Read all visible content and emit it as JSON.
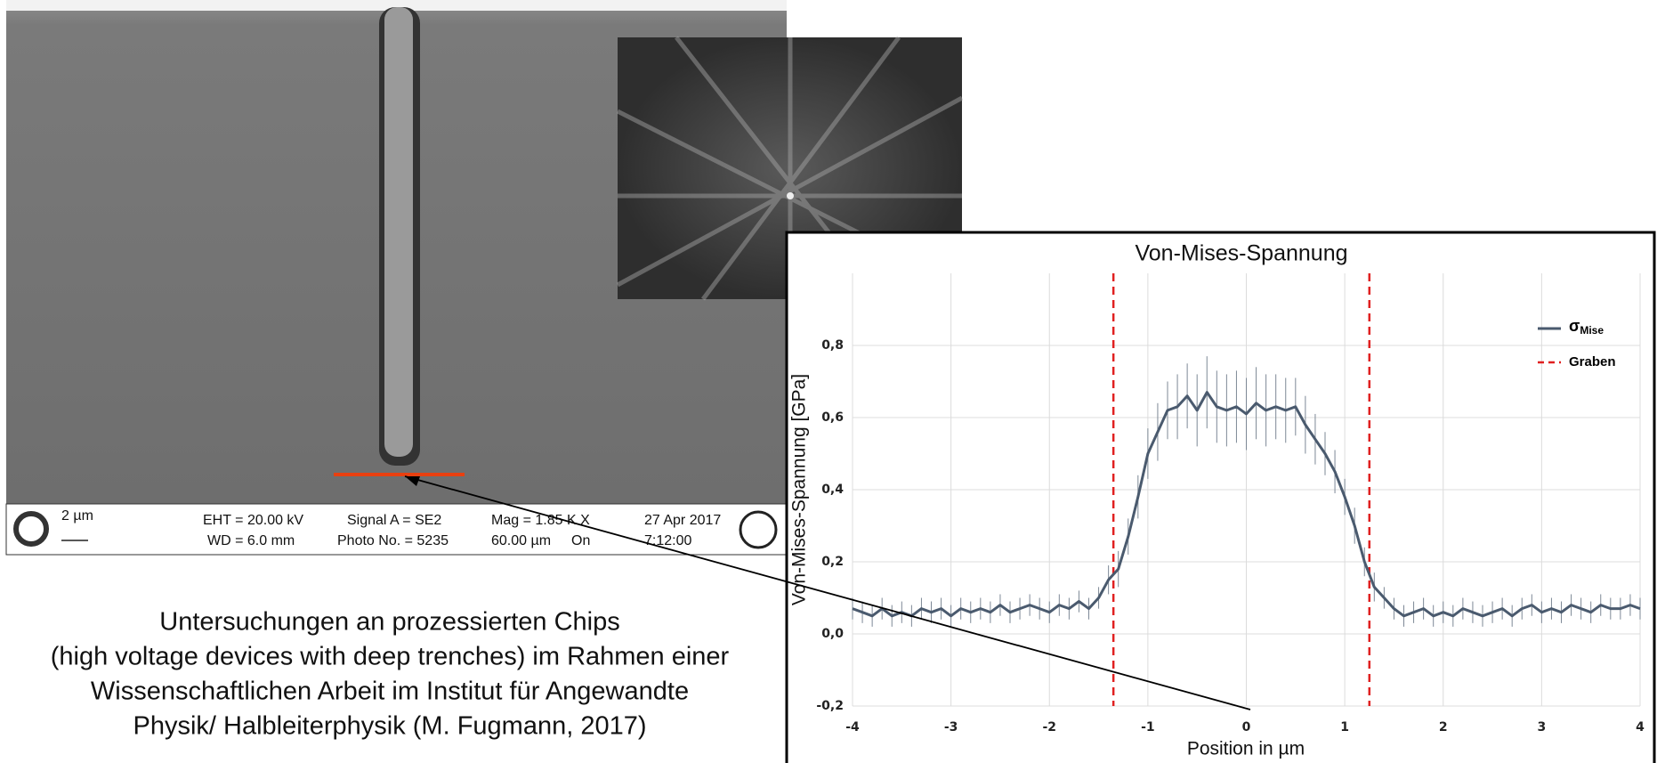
{
  "sem_info": {
    "scale": "2 µm",
    "eht": "EHT = 20.00 kV",
    "wd": "WD =  6.0 mm",
    "signal": "Signal A = SE2",
    "photo": "Photo No. = 5235",
    "mag": "Mag =   1.85 K X",
    "width": "60.00 µm",
    "on": "On",
    "date": "27 Apr 2017",
    "time": "7:12:00"
  },
  "caption": [
    "Untersuchungen an prozessierten Chips",
    "(high voltage devices with deep trenches) im Rahmen einer",
    "Wissenschaftlichen Arbeit im Institut für Angewandte",
    "Physik/ Halbleiterphysik (M. Fugmann, 2017)"
  ],
  "chart_data": {
    "type": "line",
    "title": "Von-Mises-Spannung",
    "x_label": "Position in µm",
    "y_label": "Von-Mises-Spannung [GPa]",
    "x": [
      -4,
      -3.9,
      -3.8,
      -3.7,
      -3.6,
      -3.5,
      -3.4,
      -3.3,
      -3.2,
      -3.1,
      -3,
      -2.9,
      -2.8,
      -2.7,
      -2.6,
      -2.5,
      -2.4,
      -2.3,
      -2.2,
      -2.1,
      -2,
      -1.9,
      -1.8,
      -1.7,
      -1.6,
      -1.5,
      -1.4,
      -1.3,
      -1.2,
      -1.1,
      -1,
      -0.9,
      -0.8,
      -0.7,
      -0.6,
      -0.5,
      -0.4,
      -0.3,
      -0.2,
      -0.1,
      0,
      0.1,
      0.2,
      0.3,
      0.4,
      0.5,
      0.6,
      0.7,
      0.8,
      0.9,
      1,
      1.1,
      1.2,
      1.3,
      1.4,
      1.5,
      1.6,
      1.7,
      1.8,
      1.9,
      2,
      2.1,
      2.2,
      2.3,
      2.4,
      2.5,
      2.6,
      2.7,
      2.8,
      2.9,
      3,
      3.1,
      3.2,
      3.3,
      3.4,
      3.5,
      3.6,
      3.7,
      3.8,
      3.9,
      4
    ],
    "series": [
      {
        "name": "σ",
        "subscript": "Mise",
        "color": "#4a5a6e",
        "values": [
          0.07,
          0.06,
          0.05,
          0.07,
          0.05,
          0.06,
          0.05,
          0.07,
          0.06,
          0.07,
          0.05,
          0.07,
          0.06,
          0.07,
          0.06,
          0.08,
          0.06,
          0.07,
          0.08,
          0.07,
          0.06,
          0.08,
          0.07,
          0.09,
          0.07,
          0.1,
          0.15,
          0.18,
          0.27,
          0.38,
          0.5,
          0.56,
          0.62,
          0.63,
          0.66,
          0.62,
          0.67,
          0.63,
          0.62,
          0.63,
          0.61,
          0.64,
          0.62,
          0.63,
          0.62,
          0.63,
          0.58,
          0.54,
          0.5,
          0.45,
          0.38,
          0.3,
          0.2,
          0.13,
          0.1,
          0.07,
          0.05,
          0.06,
          0.07,
          0.05,
          0.06,
          0.05,
          0.07,
          0.06,
          0.05,
          0.06,
          0.07,
          0.05,
          0.07,
          0.08,
          0.06,
          0.07,
          0.06,
          0.08,
          0.07,
          0.06,
          0.08,
          0.07,
          0.07,
          0.08,
          0.07
        ],
        "errors": [
          0.03,
          0.03,
          0.03,
          0.03,
          0.03,
          0.03,
          0.03,
          0.03,
          0.03,
          0.03,
          0.03,
          0.03,
          0.03,
          0.03,
          0.03,
          0.03,
          0.03,
          0.03,
          0.03,
          0.03,
          0.03,
          0.03,
          0.03,
          0.03,
          0.03,
          0.03,
          0.04,
          0.05,
          0.05,
          0.06,
          0.07,
          0.08,
          0.08,
          0.09,
          0.09,
          0.1,
          0.1,
          0.1,
          0.1,
          0.1,
          0.1,
          0.1,
          0.1,
          0.09,
          0.09,
          0.08,
          0.08,
          0.07,
          0.06,
          0.06,
          0.05,
          0.05,
          0.04,
          0.04,
          0.03,
          0.03,
          0.03,
          0.03,
          0.03,
          0.03,
          0.03,
          0.03,
          0.03,
          0.03,
          0.03,
          0.03,
          0.03,
          0.03,
          0.03,
          0.03,
          0.03,
          0.03,
          0.03,
          0.03,
          0.03,
          0.03,
          0.03,
          0.03,
          0.03,
          0.03,
          0.03
        ]
      }
    ],
    "vlines": {
      "name": "Graben",
      "color": "#e02020",
      "x": [
        -1.35,
        1.25
      ]
    },
    "xlim": [
      -4,
      4
    ],
    "xticks": [
      -4,
      -3,
      -2,
      -1,
      0,
      1,
      2,
      3,
      4
    ],
    "ylim": [
      -0.2,
      1.0
    ],
    "yticks": [
      {
        "value": -0.2,
        "label": "-0,2"
      },
      {
        "value": 0,
        "label": "0,0"
      },
      {
        "value": 0.2,
        "label": "0,2"
      },
      {
        "value": 0.4,
        "label": "0,4"
      },
      {
        "value": 0.6,
        "label": "0,6"
      },
      {
        "value": 0.8,
        "label": "0,8"
      }
    ],
    "grid": true,
    "legend": "top-right"
  }
}
